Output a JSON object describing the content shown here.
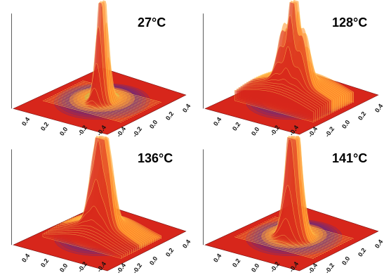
{
  "panels": [
    {
      "temperature": "27°C",
      "peaks": [
        {
          "dx": 0,
          "h": 1.0,
          "w": 0.1
        },
        {
          "dx": 0.05,
          "h": 0.35,
          "w": 0.08
        }
      ]
    },
    {
      "temperature": "128°C",
      "peaks": [
        {
          "dx": 0,
          "h": 1.0,
          "w": 0.08
        },
        {
          "dx": -0.5,
          "h": 0.55,
          "w": 0.12
        },
        {
          "dx": 0.5,
          "h": 0.55,
          "w": 0.12
        },
        {
          "dx": 0,
          "h": 0.25,
          "w": 0.9
        }
      ]
    },
    {
      "temperature": "136°C",
      "peaks": [
        {
          "dx": 0,
          "h": 1.0,
          "w": 0.08
        },
        {
          "dx": -0.35,
          "h": 0.7,
          "w": 0.11
        },
        {
          "dx": 0.35,
          "h": 0.7,
          "w": 0.11
        },
        {
          "dx": 0,
          "h": 0.2,
          "w": 0.6
        }
      ]
    },
    {
      "temperature": "141°C",
      "peaks": [
        {
          "dx": 0,
          "h": 1.0,
          "w": 0.09
        },
        {
          "dx": -0.25,
          "h": 0.75,
          "w": 0.12
        },
        {
          "dx": 0.25,
          "h": 0.6,
          "w": 0.12
        }
      ]
    }
  ],
  "x_ticks": [
    "0.4",
    "0.2",
    "0.0",
    "-0.2",
    "-0.4"
  ],
  "y_ticks": [
    "-0.4",
    "-0.2",
    "0.0",
    "0.2",
    "0.4"
  ],
  "colors": {
    "floor": "#d7261b",
    "surface": "#ff8c2a",
    "highlight": "#ffd75a",
    "edge": "#5a2a8a",
    "green": "#a9c84a"
  }
}
